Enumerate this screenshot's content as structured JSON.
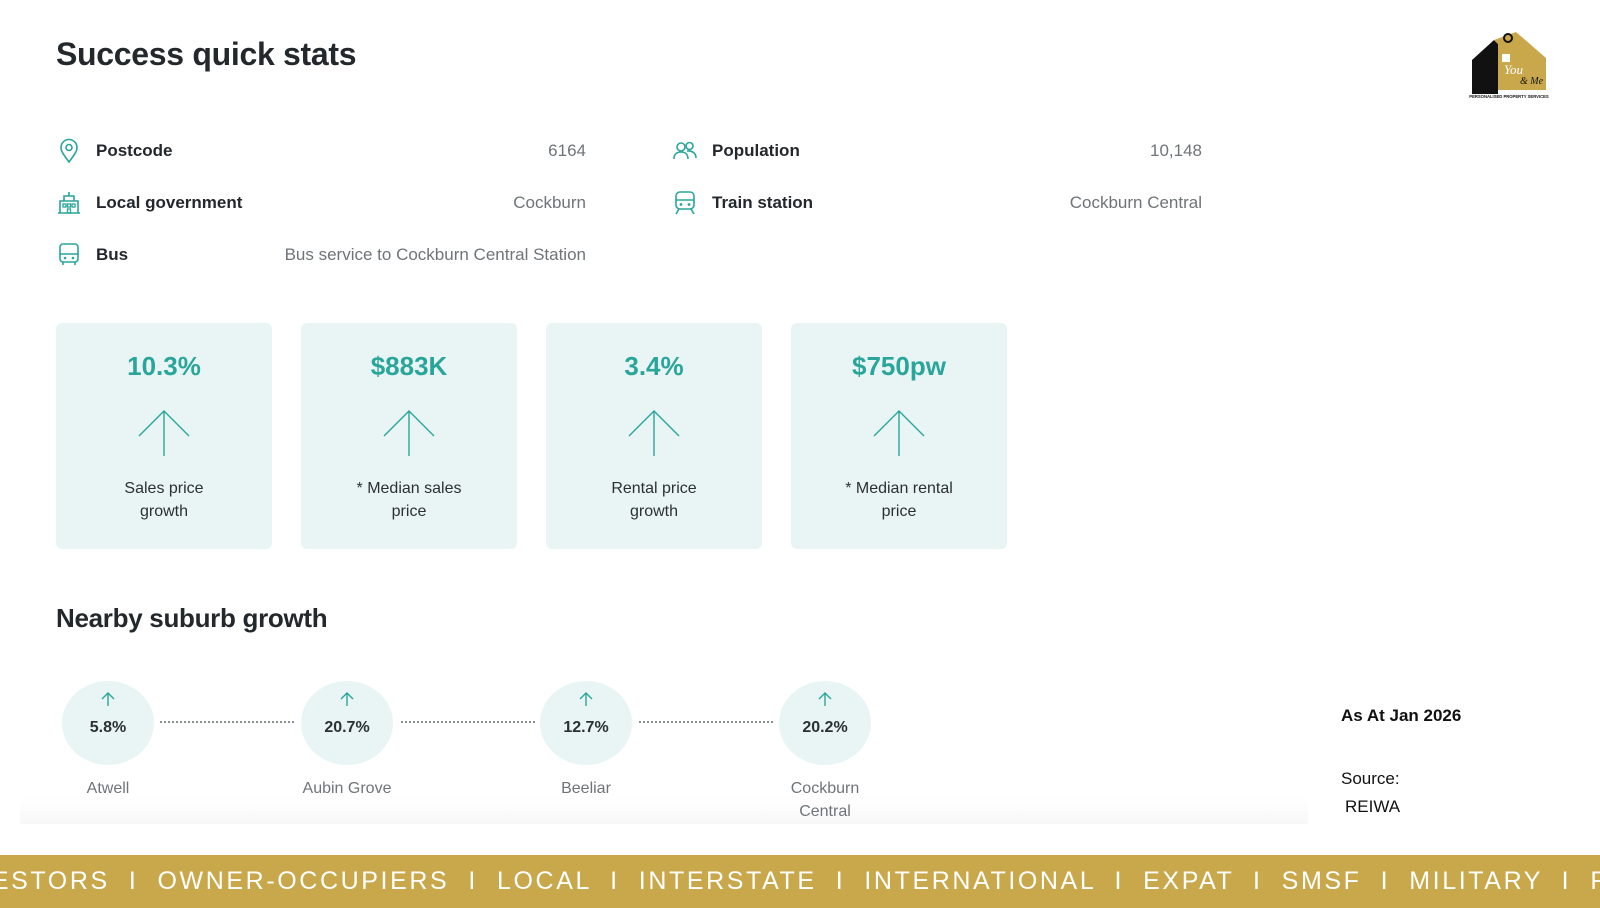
{
  "title": "Success quick stats",
  "facts": {
    "postcode": {
      "label": "Postcode",
      "value": "6164",
      "icon": "location-pin-icon"
    },
    "population": {
      "label": "Population",
      "value": "10,148",
      "icon": "people-icon"
    },
    "local_government": {
      "label": "Local government",
      "value": "Cockburn",
      "icon": "building-icon"
    },
    "train_station": {
      "label": "Train station",
      "value": "Cockburn Central",
      "icon": "train-icon"
    },
    "bus": {
      "label": "Bus",
      "value": "Bus service to Cockburn Central Station",
      "icon": "bus-icon"
    }
  },
  "cards": [
    {
      "value": "10.3%",
      "caption_line1": "Sales price",
      "caption_line2": "growth"
    },
    {
      "value": "$883K",
      "caption_line1": "* Median sales",
      "caption_line2": "price"
    },
    {
      "value": "3.4%",
      "caption_line1": "Rental price",
      "caption_line2": "growth"
    },
    {
      "value": "$750pw",
      "caption_line1": "* Median rental",
      "caption_line2": "price"
    }
  ],
  "nearby_title": "Nearby suburb growth",
  "suburbs": [
    {
      "pct": "5.8%",
      "name_line1": "Atwell",
      "name_line2": ""
    },
    {
      "pct": "20.7%",
      "name_line1": "Aubin Grove",
      "name_line2": ""
    },
    {
      "pct": "12.7%",
      "name_line1": "Beeliar",
      "name_line2": ""
    },
    {
      "pct": "20.2%",
      "name_line1": "Cockburn",
      "name_line2": "Central"
    }
  ],
  "as_at": "As At Jan 2026",
  "source_label": "Source:",
  "source_value": "REIWA",
  "banner": "INVESTORS  I  OWNER-OCCUPIERS  I  LOCAL  I  INTERSTATE  I  INTERNATIONAL  I  EXPAT  I  SMSF  I  MILITARY  I  FIFO",
  "logo": {
    "icon": "house-key-logo",
    "text_you": "You",
    "text_me": "& Me",
    "tagline": "PERSONALISED PROPERTY SERVICES",
    "colors": {
      "gold": "#c8a84b",
      "black": "#111111"
    }
  },
  "colors": {
    "accent": "#2aa59a",
    "card_bg": "#e9f5f5",
    "banner": "#c8a84b"
  }
}
